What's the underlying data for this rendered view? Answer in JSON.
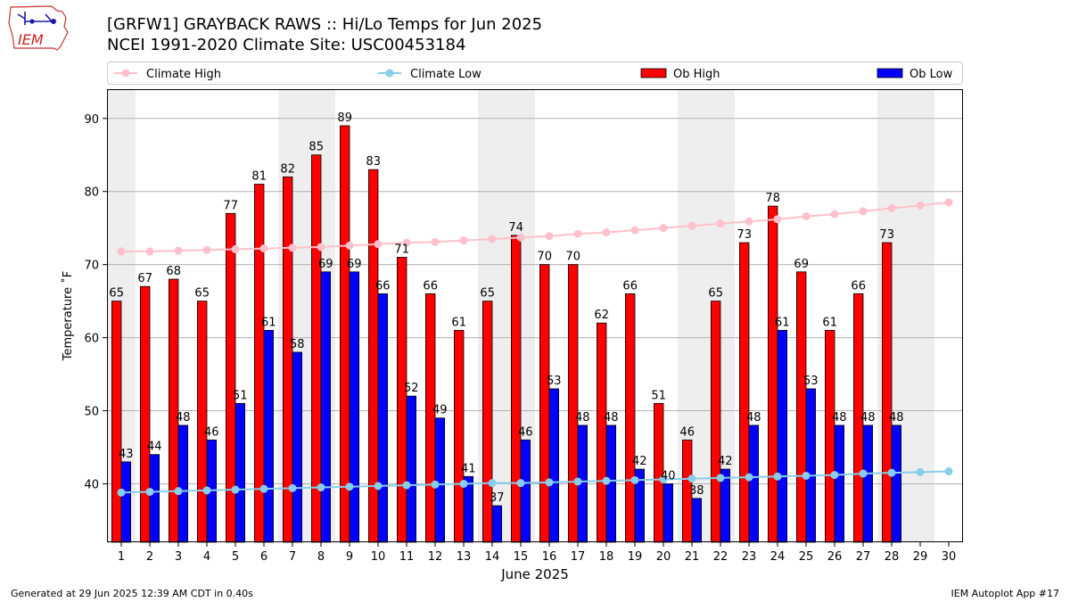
{
  "header": {
    "title_line1": "[GRFW1] GRAYBACK RAWS :: Hi/Lo Temps for Jun 2025",
    "title_line2": "NCEI 1991-2020 Climate Site: USC00453184",
    "logo_text": "IEM"
  },
  "footer": {
    "generated": "Generated at 29 Jun 2025 12:39 AM CDT in 0.40s",
    "app": "IEM Autoplot App #17"
  },
  "chart_data": {
    "type": "bar",
    "xlabel": "June 2025",
    "ylabel": "Temperature ˚F",
    "ylim": [
      32,
      94
    ],
    "yticks": [
      40,
      50,
      60,
      70,
      80,
      90
    ],
    "grid": true,
    "legend_placement": "top",
    "categories": [
      "1",
      "2",
      "3",
      "4",
      "5",
      "6",
      "7",
      "8",
      "9",
      "10",
      "11",
      "12",
      "13",
      "14",
      "15",
      "16",
      "17",
      "18",
      "19",
      "20",
      "21",
      "22",
      "23",
      "24",
      "25",
      "26",
      "27",
      "28",
      "29",
      "30"
    ],
    "shaded_days": [
      1,
      7,
      8,
      14,
      15,
      21,
      22,
      28,
      29
    ],
    "series": [
      {
        "name": "Climate High",
        "kind": "line",
        "color": "#ffc0cb",
        "values": [
          71.8,
          71.8,
          71.9,
          72.0,
          72.1,
          72.2,
          72.3,
          72.4,
          72.6,
          72.8,
          73.0,
          73.1,
          73.3,
          73.5,
          73.7,
          73.9,
          74.2,
          74.4,
          74.7,
          75.0,
          75.3,
          75.6,
          75.9,
          76.2,
          76.6,
          76.9,
          77.3,
          77.7,
          78.1,
          78.5
        ]
      },
      {
        "name": "Climate Low",
        "kind": "line",
        "color": "#87ceeb",
        "values": [
          38.8,
          38.9,
          39.0,
          39.1,
          39.2,
          39.3,
          39.4,
          39.5,
          39.6,
          39.7,
          39.8,
          39.9,
          40.0,
          40.1,
          40.1,
          40.2,
          40.3,
          40.4,
          40.5,
          40.6,
          40.7,
          40.8,
          40.9,
          41.0,
          41.1,
          41.2,
          41.4,
          41.5,
          41.6,
          41.7
        ]
      },
      {
        "name": "Ob High",
        "kind": "bar",
        "color": "#ff0000",
        "values": [
          65,
          67,
          68,
          65,
          77,
          81,
          82,
          85,
          89,
          83,
          71,
          66,
          61,
          65,
          74,
          70,
          70,
          62,
          66,
          51,
          46,
          65,
          73,
          78,
          69,
          61,
          66,
          73,
          null,
          null
        ]
      },
      {
        "name": "Ob Low",
        "kind": "bar",
        "color": "#0000ff",
        "values": [
          43,
          44,
          48,
          46,
          51,
          61,
          58,
          69,
          69,
          66,
          52,
          49,
          41,
          37,
          46,
          53,
          48,
          48,
          42,
          40,
          38,
          42,
          48,
          61,
          53,
          48,
          48,
          48,
          null,
          null
        ]
      }
    ]
  }
}
